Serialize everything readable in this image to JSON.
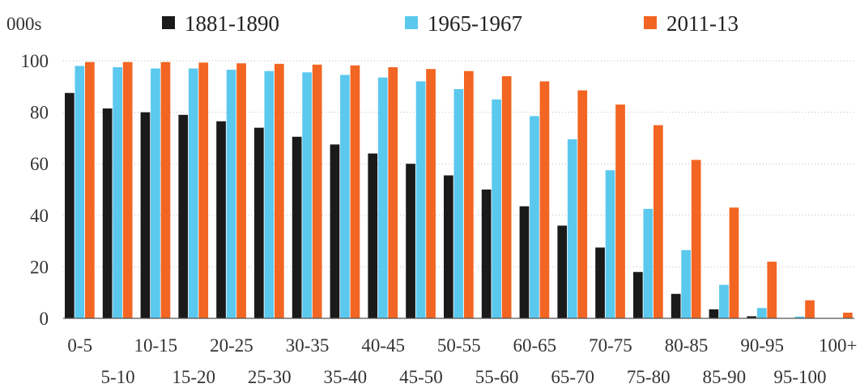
{
  "chart_data": {
    "type": "bar",
    "y_unit_label": "000s",
    "categories": [
      "0-5",
      "5-10",
      "10-15",
      "15-20",
      "20-25",
      "25-30",
      "30-35",
      "35-40",
      "40-45",
      "45-50",
      "50-55",
      "55-60",
      "60-65",
      "65-70",
      "70-75",
      "75-80",
      "80-85",
      "85-90",
      "90-95",
      "95-100",
      "100+"
    ],
    "series": [
      {
        "name": "1881-1890",
        "color": "#1a1a1a",
        "values": [
          87.5,
          81.5,
          80,
          79,
          76.5,
          74,
          70.5,
          67.5,
          64,
          60,
          55.5,
          50,
          43.5,
          36,
          27.5,
          18,
          9.5,
          3.5,
          0.8,
          0,
          0
        ]
      },
      {
        "name": "1965-1967",
        "color": "#5bc8ee",
        "values": [
          98,
          97.5,
          97,
          97,
          96.5,
          96,
          95.5,
          94.5,
          93.5,
          92,
          89,
          85,
          78.5,
          69.5,
          57.5,
          42.5,
          26.5,
          13,
          4,
          0.7,
          0
        ]
      },
      {
        "name": "2011-13",
        "color": "#f26522",
        "values": [
          99.5,
          99.5,
          99.5,
          99.3,
          99,
          98.8,
          98.5,
          98.2,
          97.5,
          96.8,
          96,
          94,
          92,
          88.5,
          83,
          75,
          61.5,
          43,
          22,
          7,
          2.2
        ]
      }
    ],
    "ylim": [
      0,
      100
    ],
    "yticks": [
      0,
      20,
      40,
      60,
      80,
      100
    ],
    "grid": "horizontal-dotted",
    "legend": "top"
  }
}
